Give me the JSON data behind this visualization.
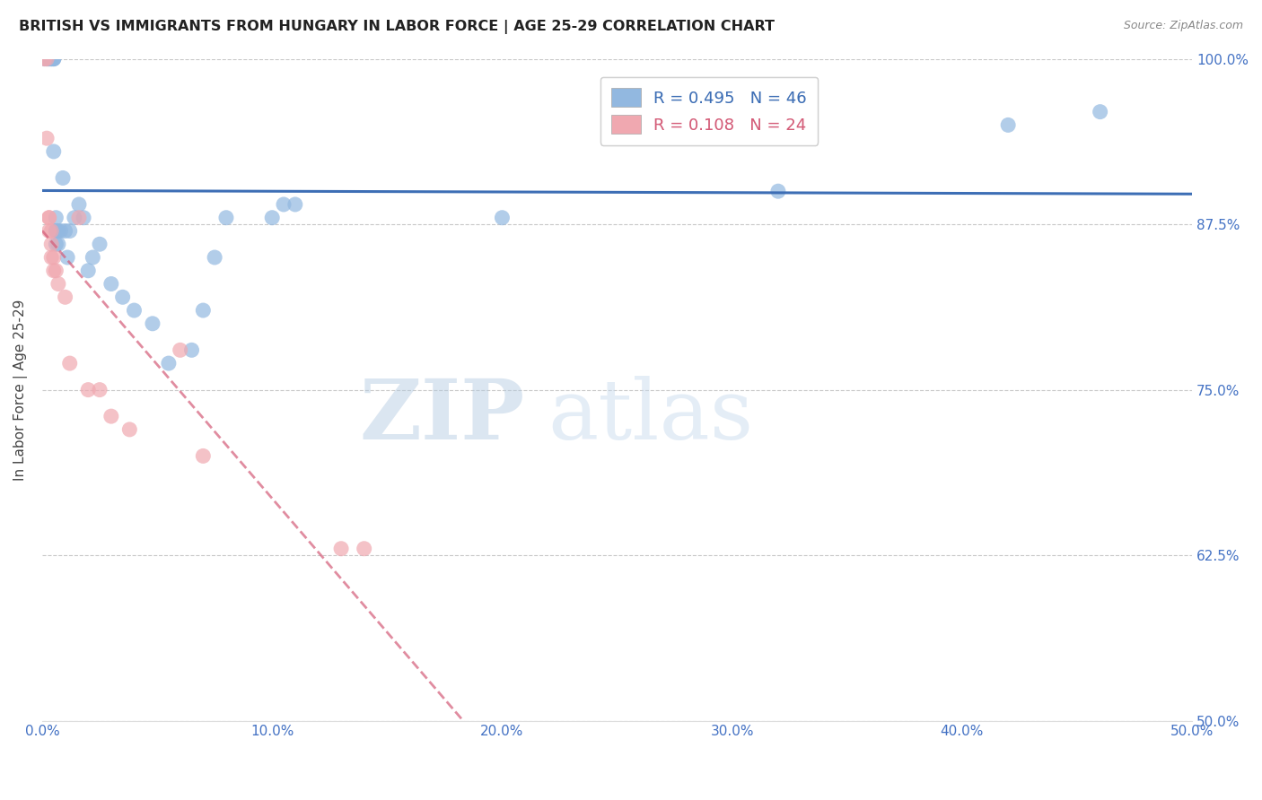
{
  "title": "BRITISH VS IMMIGRANTS FROM HUNGARY IN LABOR FORCE | AGE 25-29 CORRELATION CHART",
  "source": "Source: ZipAtlas.com",
  "ylabel": "In Labor Force | Age 25-29",
  "xlabel_ticks": [
    "0.0%",
    "10.0%",
    "20.0%",
    "30.0%",
    "40.0%",
    "50.0%"
  ],
  "xlabel_vals": [
    0.0,
    0.1,
    0.2,
    0.3,
    0.4,
    0.5
  ],
  "ylabel_ticks": [
    "50.0%",
    "62.5%",
    "75.0%",
    "87.5%",
    "100.0%"
  ],
  "ylabel_vals": [
    0.5,
    0.625,
    0.75,
    0.875,
    1.0
  ],
  "xlim": [
    0.0,
    0.5
  ],
  "ylim": [
    0.5,
    1.0
  ],
  "british_x": [
    0.001,
    0.002,
    0.002,
    0.003,
    0.003,
    0.003,
    0.004,
    0.004,
    0.004,
    0.005,
    0.005,
    0.005,
    0.005,
    0.006,
    0.006,
    0.006,
    0.006,
    0.007,
    0.007,
    0.008,
    0.009,
    0.01,
    0.011,
    0.012,
    0.014,
    0.016,
    0.018,
    0.02,
    0.022,
    0.025,
    0.03,
    0.035,
    0.04,
    0.048,
    0.055,
    0.065,
    0.07,
    0.075,
    0.08,
    0.1,
    0.105,
    0.11,
    0.2,
    0.32,
    0.42,
    0.46
  ],
  "british_y": [
    1.0,
    1.0,
    1.0,
    1.0,
    1.0,
    1.0,
    1.0,
    1.0,
    1.0,
    1.0,
    1.0,
    1.0,
    0.93,
    0.88,
    0.87,
    0.87,
    0.86,
    0.86,
    0.87,
    0.87,
    0.91,
    0.87,
    0.85,
    0.87,
    0.88,
    0.89,
    0.88,
    0.84,
    0.85,
    0.86,
    0.83,
    0.82,
    0.81,
    0.8,
    0.77,
    0.78,
    0.81,
    0.85,
    0.88,
    0.88,
    0.89,
    0.89,
    0.88,
    0.9,
    0.95,
    0.96
  ],
  "hungary_x": [
    0.001,
    0.002,
    0.002,
    0.003,
    0.003,
    0.003,
    0.004,
    0.004,
    0.004,
    0.005,
    0.005,
    0.006,
    0.007,
    0.01,
    0.012,
    0.016,
    0.02,
    0.025,
    0.03,
    0.038,
    0.06,
    0.07,
    0.13,
    0.14
  ],
  "hungary_y": [
    1.0,
    0.94,
    1.0,
    0.88,
    0.88,
    0.87,
    0.87,
    0.86,
    0.85,
    0.85,
    0.84,
    0.84,
    0.83,
    0.82,
    0.77,
    0.88,
    0.75,
    0.75,
    0.73,
    0.72,
    0.78,
    0.7,
    0.63,
    0.63
  ],
  "R_british": 0.495,
  "N_british": 46,
  "R_hungary": 0.108,
  "N_hungary": 24,
  "british_color": "#92b8e0",
  "hungary_color": "#f0a8b0",
  "british_line_color": "#3d6eb5",
  "hungary_line_color": "#d45c78",
  "watermark_zip": "ZIP",
  "watermark_atlas": "atlas",
  "title_color": "#222222",
  "axis_color": "#4472c4",
  "gridline_color": "#c8c8c8",
  "background_color": "#ffffff"
}
